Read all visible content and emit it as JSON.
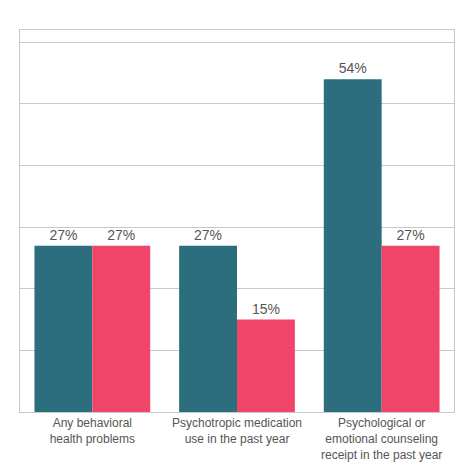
{
  "chart_data": {
    "type": "bar",
    "categories": [
      "Any behavioral\nhealth problems",
      "Psychotropic medication\nuse in the past year",
      "Psychological or\nemotional counseling\nreceipt in the past year"
    ],
    "series": [
      {
        "color": "#2d6e7e",
        "values": [
          27,
          27,
          54
        ],
        "value_labels": [
          "27%",
          "27%",
          "54%"
        ]
      },
      {
        "color": "#f04469",
        "values": [
          27,
          15,
          27
        ],
        "value_labels": [
          "27%",
          "15%",
          "27%"
        ]
      }
    ],
    "ylim": [
      0,
      62
    ],
    "yticks": [
      0,
      10,
      20,
      30,
      40,
      50,
      60
    ],
    "grid": true,
    "data_labels": true,
    "tick_labels": "x"
  }
}
